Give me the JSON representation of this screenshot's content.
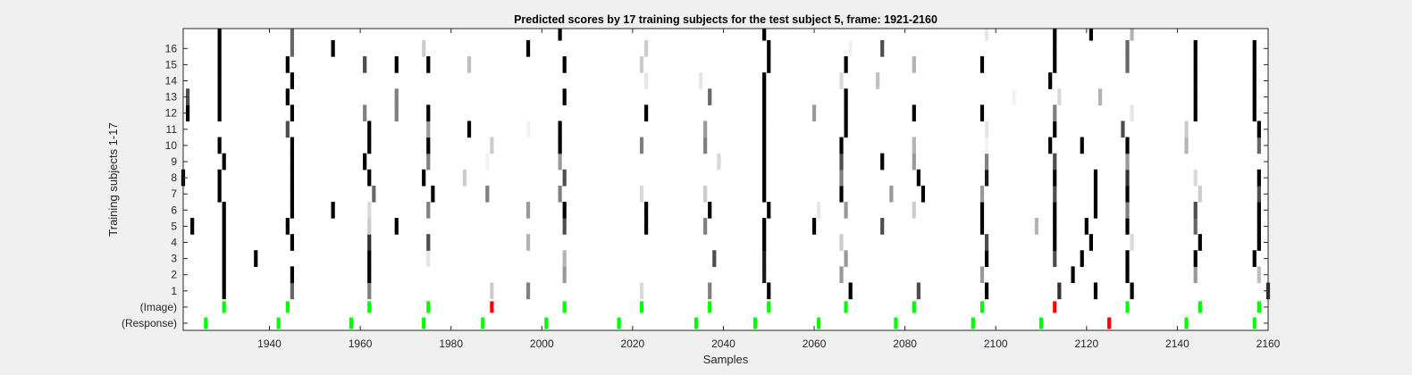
{
  "chart_data": {
    "type": "heatmap",
    "title": "Predicted scores by 17 training subjects for the test subject 5, frame: 1921-2160",
    "xlabel": "Samples",
    "ylabel": "Training subjects 1-17",
    "xlim": [
      1921,
      2160
    ],
    "x_ticks": [
      1940,
      1960,
      1980,
      2000,
      2020,
      2040,
      2060,
      2080,
      2100,
      2120,
      2140,
      2160
    ],
    "y_tick_labels": [
      "(Response)",
      "(Image)",
      "1",
      "2",
      "3",
      "4",
      "5",
      "6",
      "7",
      "8",
      "9",
      "10",
      "11",
      "12",
      "13",
      "14",
      "15",
      "16"
    ],
    "grid": false,
    "colors": {
      "correct": "#00ff00",
      "error": "#ff0000",
      "background": "#ffffff"
    },
    "rows": [
      {
        "label": "(Response)",
        "marks": [
          [
            1926,
            "g"
          ],
          [
            1942,
            "g"
          ],
          [
            1958,
            "g"
          ],
          [
            1974,
            "g"
          ],
          [
            1987,
            "g"
          ],
          [
            2001,
            "g"
          ],
          [
            2017,
            "g"
          ],
          [
            2034,
            "g"
          ],
          [
            2047,
            "g"
          ],
          [
            2061,
            "g"
          ],
          [
            2078,
            "g"
          ],
          [
            2095,
            "g"
          ],
          [
            2110,
            "g"
          ],
          [
            2125,
            "r"
          ],
          [
            2142,
            "g"
          ],
          [
            2157,
            "g"
          ]
        ]
      },
      {
        "label": "(Image)",
        "marks": [
          [
            1930,
            "g"
          ],
          [
            1944,
            "g"
          ],
          [
            1962,
            "g"
          ],
          [
            1975,
            "g"
          ],
          [
            1989,
            "r"
          ],
          [
            2005,
            "g"
          ],
          [
            2022,
            "g"
          ],
          [
            2037,
            "g"
          ],
          [
            2050,
            "g"
          ],
          [
            2067,
            "g"
          ],
          [
            2082,
            "g"
          ],
          [
            2097,
            "g"
          ],
          [
            2113,
            "r"
          ],
          [
            2129,
            "g"
          ],
          [
            2145,
            "g"
          ],
          [
            2158,
            "g"
          ]
        ]
      },
      {
        "label": "1",
        "cells": [
          [
            1930,
            0
          ],
          [
            1945,
            0.4
          ],
          [
            1962,
            0.5
          ],
          [
            1989,
            0.8
          ],
          [
            1997,
            0.5
          ],
          [
            2022,
            0.85
          ],
          [
            2037,
            0.5
          ],
          [
            2050,
            0
          ],
          [
            2068,
            0
          ],
          [
            2083,
            0.3
          ],
          [
            2098,
            0
          ],
          [
            2114,
            0.2
          ],
          [
            2122,
            0
          ],
          [
            2130,
            0
          ],
          [
            2160,
            0.2
          ]
        ]
      },
      {
        "label": "2",
        "cells": [
          [
            1930,
            0
          ],
          [
            1945,
            0
          ],
          [
            1962,
            0
          ],
          [
            2005,
            0.6
          ],
          [
            2049,
            0.1
          ],
          [
            2066,
            0.6
          ],
          [
            2097,
            0.6
          ],
          [
            2117,
            0
          ],
          [
            2129,
            0
          ],
          [
            2144,
            0.6
          ],
          [
            2158,
            0.75
          ]
        ]
      },
      {
        "label": "3",
        "cells": [
          [
            1930,
            0
          ],
          [
            1937,
            0
          ],
          [
            1962,
            0
          ],
          [
            1975,
            0.9
          ],
          [
            2005,
            0.7
          ],
          [
            2038,
            0.3
          ],
          [
            2049,
            0.1
          ],
          [
            2067,
            0.6
          ],
          [
            2098,
            0
          ],
          [
            2113,
            0.3
          ],
          [
            2119,
            0
          ],
          [
            2129,
            0
          ],
          [
            2144,
            0
          ],
          [
            2157,
            0
          ]
        ]
      },
      {
        "label": "4",
        "cells": [
          [
            1930,
            0
          ],
          [
            1945,
            0
          ],
          [
            1962,
            0.2
          ],
          [
            1975,
            0.3
          ],
          [
            1997,
            0.7
          ],
          [
            2049,
            0
          ],
          [
            2066,
            0.8
          ],
          [
            2098,
            0.3
          ],
          [
            2113,
            0
          ],
          [
            2121,
            0
          ],
          [
            2130,
            0.85
          ],
          [
            2145,
            0
          ],
          [
            2158,
            0
          ]
        ]
      },
      {
        "label": "5",
        "cells": [
          [
            1923,
            0
          ],
          [
            1930,
            0
          ],
          [
            1944,
            0
          ],
          [
            1962,
            0.8
          ],
          [
            1968,
            0
          ],
          [
            2005,
            0.3
          ],
          [
            2023,
            0
          ],
          [
            2036,
            0.5
          ],
          [
            2049,
            0
          ],
          [
            2060,
            0
          ],
          [
            2075,
            0.3
          ],
          [
            2097,
            0
          ],
          [
            2109,
            0.7
          ],
          [
            2113,
            0
          ],
          [
            2120,
            0
          ],
          [
            2129,
            0
          ],
          [
            2144,
            0.4
          ],
          [
            2158,
            0
          ]
        ]
      },
      {
        "label": "6",
        "cells": [
          [
            1930,
            0
          ],
          [
            1945,
            0
          ],
          [
            1954,
            0
          ],
          [
            1962,
            0.85
          ],
          [
            1975,
            0.5
          ],
          [
            1997,
            0.6
          ],
          [
            2005,
            0
          ],
          [
            2023,
            0
          ],
          [
            2037,
            0
          ],
          [
            2050,
            0
          ],
          [
            2061,
            0.9
          ],
          [
            2067,
            0.6
          ],
          [
            2082,
            0.8
          ],
          [
            2097,
            0
          ],
          [
            2113,
            0
          ],
          [
            2122,
            0
          ],
          [
            2129,
            0.5
          ],
          [
            2144,
            0.3
          ],
          [
            2158,
            0
          ]
        ]
      },
      {
        "label": "7",
        "cells": [
          [
            1929,
            0
          ],
          [
            1945,
            0
          ],
          [
            1963,
            0.4
          ],
          [
            1976,
            0
          ],
          [
            1988,
            0.5
          ],
          [
            2004,
            0.5
          ],
          [
            2022,
            0.85
          ],
          [
            2036,
            0.8
          ],
          [
            2049,
            0
          ],
          [
            2066,
            0
          ],
          [
            2077,
            0.6
          ],
          [
            2084,
            0
          ],
          [
            2097,
            0.6
          ],
          [
            2113,
            0.3
          ],
          [
            2122,
            0
          ],
          [
            2129,
            0
          ],
          [
            2145,
            0.8
          ],
          [
            2158,
            0.3
          ]
        ]
      },
      {
        "label": "8",
        "cells": [
          [
            1921,
            0
          ],
          [
            1929,
            0
          ],
          [
            1945,
            0
          ],
          [
            1962,
            0
          ],
          [
            1974,
            0
          ],
          [
            1983,
            0.8
          ],
          [
            2005,
            0.3
          ],
          [
            2049,
            0
          ],
          [
            2066,
            0.5
          ],
          [
            2083,
            0
          ],
          [
            2098,
            0.1
          ],
          [
            2113,
            0
          ],
          [
            2122,
            0
          ],
          [
            2129,
            0.2
          ],
          [
            2144,
            0.85
          ],
          [
            2158,
            0
          ]
        ]
      },
      {
        "label": "9",
        "cells": [
          [
            1930,
            0
          ],
          [
            1945,
            0
          ],
          [
            1961,
            0
          ],
          [
            1975,
            0.5
          ],
          [
            1988,
            0.95
          ],
          [
            2004,
            0.6
          ],
          [
            2039,
            0.85
          ],
          [
            2049,
            0
          ],
          [
            2066,
            0.3
          ],
          [
            2075,
            0
          ],
          [
            2082,
            0.6
          ],
          [
            2098,
            0.5
          ],
          [
            2113,
            0.3
          ],
          [
            2129,
            0.6
          ]
        ]
      },
      {
        "label": "10",
        "cells": [
          [
            1929,
            0
          ],
          [
            1945,
            0
          ],
          [
            1962,
            0
          ],
          [
            1975,
            0
          ],
          [
            1989,
            0.8
          ],
          [
            2004,
            0
          ],
          [
            2022,
            0.5
          ],
          [
            2036,
            0.5
          ],
          [
            2049,
            0
          ],
          [
            2066,
            0
          ],
          [
            2082,
            0.7
          ],
          [
            2098,
            0.95
          ],
          [
            2112,
            0
          ],
          [
            2119,
            0
          ],
          [
            2129,
            0
          ],
          [
            2142,
            0.7
          ],
          [
            2158,
            0.4
          ]
        ]
      },
      {
        "label": "11",
        "cells": [
          [
            1944,
            0.3
          ],
          [
            1962,
            0
          ],
          [
            1975,
            0.6
          ],
          [
            1984,
            0
          ],
          [
            1997,
            0.95
          ],
          [
            2004,
            0
          ],
          [
            2036,
            0.6
          ],
          [
            2049,
            0
          ],
          [
            2067,
            0
          ],
          [
            2098,
            0.9
          ],
          [
            2113,
            0
          ],
          [
            2128,
            0.3
          ],
          [
            2142,
            0.8
          ],
          [
            2158,
            0
          ]
        ]
      },
      {
        "label": "12",
        "cells": [
          [
            1922,
            0
          ],
          [
            1929,
            0
          ],
          [
            1945,
            0
          ],
          [
            1961,
            0.5
          ],
          [
            1968,
            0.5
          ],
          [
            1975,
            0
          ],
          [
            2023,
            0
          ],
          [
            2049,
            0
          ],
          [
            2060,
            0.6
          ],
          [
            2067,
            0
          ],
          [
            2082,
            0
          ],
          [
            2097,
            0
          ],
          [
            2113,
            0.5
          ],
          [
            2130,
            0.9
          ],
          [
            2144,
            0
          ],
          [
            2157,
            0
          ]
        ]
      },
      {
        "label": "13",
        "cells": [
          [
            1922,
            0.3
          ],
          [
            1929,
            0
          ],
          [
            1944,
            0
          ],
          [
            1968,
            0.5
          ],
          [
            2005,
            0
          ],
          [
            2037,
            0.4
          ],
          [
            2049,
            0
          ],
          [
            2067,
            0
          ],
          [
            2104,
            0.95
          ],
          [
            2114,
            0.85
          ],
          [
            2123,
            0.7
          ],
          [
            2144,
            0
          ],
          [
            2157,
            0
          ]
        ]
      },
      {
        "label": "14",
        "cells": [
          [
            1929,
            0
          ],
          [
            1945,
            0
          ],
          [
            2023,
            0.9
          ],
          [
            2035,
            0.9
          ],
          [
            2049,
            0
          ],
          [
            2066,
            0.85
          ],
          [
            2074,
            0.75
          ],
          [
            2112,
            0
          ],
          [
            2144,
            0
          ],
          [
            2157,
            0
          ]
        ]
      },
      {
        "label": "15",
        "cells": [
          [
            1929,
            0
          ],
          [
            1944,
            0
          ],
          [
            1961,
            0.3
          ],
          [
            1968,
            0
          ],
          [
            1975,
            0
          ],
          [
            1984,
            0.75
          ],
          [
            2005,
            0
          ],
          [
            2022,
            0.8
          ],
          [
            2050,
            0
          ],
          [
            2067,
            0
          ],
          [
            2082,
            0.7
          ],
          [
            2097,
            0
          ],
          [
            2113,
            0
          ],
          [
            2129,
            0.4
          ],
          [
            2144,
            0
          ],
          [
            2157,
            0
          ]
        ]
      },
      {
        "label": "16",
        "cells": [
          [
            1929,
            0
          ],
          [
            1945,
            0.4
          ],
          [
            1954,
            0
          ],
          [
            1974,
            0.8
          ],
          [
            1997,
            0
          ],
          [
            2023,
            0.8
          ],
          [
            2050,
            0
          ],
          [
            2068,
            0.95
          ],
          [
            2075,
            0.3
          ],
          [
            2113,
            0
          ],
          [
            2129,
            0.4
          ],
          [
            2144,
            0
          ],
          [
            2157,
            0
          ]
        ]
      },
      {
        "label": "",
        "cells": [
          [
            1929,
            0
          ],
          [
            1945,
            0.4
          ],
          [
            2004,
            0
          ],
          [
            2049,
            0
          ],
          [
            2098,
            0.9
          ],
          [
            2113,
            0
          ],
          [
            2121,
            0
          ],
          [
            2130,
            0.7
          ]
        ]
      }
    ]
  }
}
